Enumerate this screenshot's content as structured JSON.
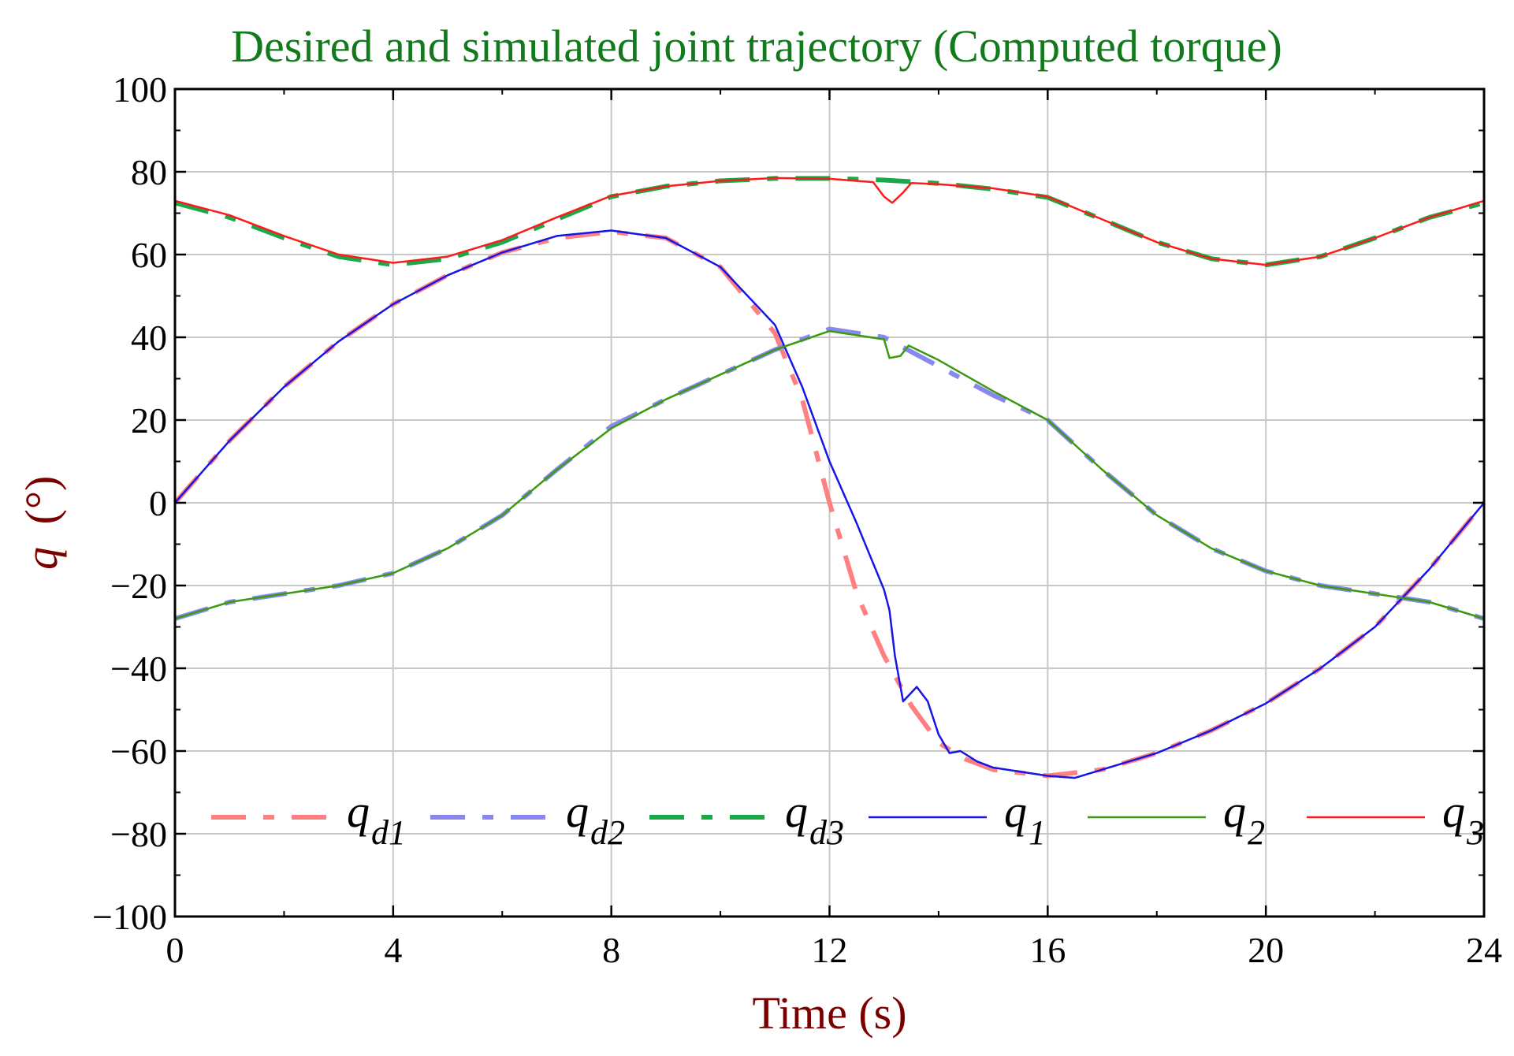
{
  "colors": {
    "title": "#117a1a",
    "axis_label": "#7a0000",
    "grid": "#c8c8c8",
    "frame": "#000000"
  },
  "chart_data": {
    "type": "line",
    "title": "Desired and simulated joint trajectory (Computed torque)",
    "xlabel": "Time (s)",
    "ylabel": "q (°)",
    "ylabel_parts": {
      "symbol": "q",
      "unit": "(°)"
    },
    "xlim": [
      0,
      24
    ],
    "ylim": [
      -100,
      100
    ],
    "xticks": [
      0,
      4,
      8,
      12,
      16,
      20,
      24
    ],
    "yticks": [
      -100,
      -80,
      -60,
      -40,
      -20,
      0,
      20,
      40,
      60,
      80,
      100
    ],
    "xtick_labels": [
      "0",
      "4",
      "8",
      "12",
      "16",
      "20",
      "24"
    ],
    "ytick_labels": [
      "−100",
      "−80",
      "−60",
      "−40",
      "−20",
      "0",
      "20",
      "40",
      "60",
      "80",
      "100"
    ],
    "grid": true,
    "legend_position": "bottom",
    "series": [
      {
        "name": "q_d1",
        "label_main": "q",
        "label_sub": "d1",
        "color": "#ff8080",
        "dash": "dashed",
        "width": 6,
        "points": [
          [
            0,
            0
          ],
          [
            1,
            15
          ],
          [
            2,
            28
          ],
          [
            3,
            39
          ],
          [
            4,
            48
          ],
          [
            5,
            55
          ],
          [
            6,
            60.5
          ],
          [
            7,
            64
          ],
          [
            8,
            65.5
          ],
          [
            9,
            64
          ],
          [
            10,
            57
          ],
          [
            11,
            41
          ],
          [
            11.5,
            25
          ],
          [
            12,
            0
          ],
          [
            12.5,
            -22
          ],
          [
            13,
            -37
          ],
          [
            13.5,
            -49
          ],
          [
            14,
            -58
          ],
          [
            14.5,
            -62
          ],
          [
            15,
            -64.5
          ],
          [
            16,
            -66
          ],
          [
            17,
            -64.5
          ],
          [
            18,
            -60.5
          ],
          [
            19,
            -55
          ],
          [
            20,
            -48.5
          ],
          [
            21,
            -40
          ],
          [
            22,
            -30
          ],
          [
            23,
            -16
          ],
          [
            24,
            0
          ]
        ]
      },
      {
        "name": "q_d2",
        "label_main": "q",
        "label_sub": "d2",
        "color": "#8888ee",
        "dash": "dashed",
        "width": 6,
        "points": [
          [
            0,
            -28
          ],
          [
            1,
            -24
          ],
          [
            2,
            -22
          ],
          [
            3,
            -20
          ],
          [
            4,
            -17
          ],
          [
            5,
            -11
          ],
          [
            6,
            -3
          ],
          [
            7,
            8
          ],
          [
            8,
            18.5
          ],
          [
            9,
            25
          ],
          [
            10,
            31
          ],
          [
            11,
            37
          ],
          [
            12,
            42
          ],
          [
            13,
            40
          ],
          [
            14,
            33
          ],
          [
            15,
            26
          ],
          [
            16,
            20
          ],
          [
            17,
            8
          ],
          [
            18,
            -3
          ],
          [
            19,
            -11
          ],
          [
            20,
            -16.5
          ],
          [
            21,
            -20
          ],
          [
            22,
            -22
          ],
          [
            23,
            -24
          ],
          [
            24,
            -28
          ]
        ]
      },
      {
        "name": "q_d3",
        "label_main": "q",
        "label_sub": "d3",
        "color": "#1aa84a",
        "dash": "dashed",
        "width": 6,
        "points": [
          [
            0,
            72.5
          ],
          [
            1,
            69
          ],
          [
            2,
            64
          ],
          [
            3,
            59.5
          ],
          [
            4,
            57.5
          ],
          [
            5,
            59
          ],
          [
            6,
            63
          ],
          [
            7,
            68.5
          ],
          [
            8,
            74
          ],
          [
            9,
            76.5
          ],
          [
            10,
            77.8
          ],
          [
            11,
            78.4
          ],
          [
            12,
            78.4
          ],
          [
            13,
            78
          ],
          [
            14,
            77.2
          ],
          [
            15,
            75.8
          ],
          [
            16,
            73.8
          ],
          [
            17,
            68.5
          ],
          [
            18,
            63
          ],
          [
            19,
            59
          ],
          [
            20,
            57.5
          ],
          [
            21,
            59.5
          ],
          [
            22,
            64
          ],
          [
            23,
            69
          ],
          [
            24,
            72.5
          ]
        ]
      },
      {
        "name": "q_1",
        "label_main": "q",
        "label_sub": "1",
        "color": "#1515e6",
        "dash": "solid",
        "width": 2.5,
        "points": [
          [
            0,
            0
          ],
          [
            1,
            15
          ],
          [
            2,
            28
          ],
          [
            3,
            39
          ],
          [
            4,
            48
          ],
          [
            5,
            55
          ],
          [
            6,
            60.5
          ],
          [
            7,
            64.5
          ],
          [
            8,
            65.8
          ],
          [
            9,
            64
          ],
          [
            10,
            57
          ],
          [
            11,
            43
          ],
          [
            11.5,
            28
          ],
          [
            12,
            10
          ],
          [
            12.5,
            -5
          ],
          [
            13,
            -21
          ],
          [
            13.1,
            -26
          ],
          [
            13.2,
            -37
          ],
          [
            13.35,
            -48
          ],
          [
            13.6,
            -44.5
          ],
          [
            13.8,
            -48
          ],
          [
            14,
            -56
          ],
          [
            14.2,
            -60.5
          ],
          [
            14.4,
            -60
          ],
          [
            14.7,
            -62.5
          ],
          [
            15,
            -64
          ],
          [
            16,
            -66
          ],
          [
            16.5,
            -66.5
          ],
          [
            17,
            -64.5
          ],
          [
            18,
            -60.5
          ],
          [
            19,
            -55
          ],
          [
            20,
            -48.5
          ],
          [
            21,
            -40
          ],
          [
            22,
            -30
          ],
          [
            23,
            -16
          ],
          [
            24,
            0
          ]
        ]
      },
      {
        "name": "q_2",
        "label_main": "q",
        "label_sub": "2",
        "color": "#3a9a10",
        "dash": "solid",
        "width": 2.5,
        "points": [
          [
            0,
            -28
          ],
          [
            1,
            -24
          ],
          [
            2,
            -22
          ],
          [
            3,
            -20
          ],
          [
            4,
            -17
          ],
          [
            5,
            -11
          ],
          [
            6,
            -3
          ],
          [
            7,
            8
          ],
          [
            8,
            18
          ],
          [
            9,
            25
          ],
          [
            10,
            31
          ],
          [
            11,
            37
          ],
          [
            12,
            41.5
          ],
          [
            13,
            39.5
          ],
          [
            13.1,
            35
          ],
          [
            13.3,
            35.5
          ],
          [
            13.45,
            38
          ],
          [
            14,
            34.5
          ],
          [
            15,
            27
          ],
          [
            16,
            20
          ],
          [
            17,
            8
          ],
          [
            18,
            -3
          ],
          [
            19,
            -11
          ],
          [
            20,
            -16.5
          ],
          [
            21,
            -20
          ],
          [
            22,
            -22
          ],
          [
            23,
            -24
          ],
          [
            24,
            -28
          ]
        ]
      },
      {
        "name": "q_3",
        "label_main": "q",
        "label_sub": "3",
        "color": "#ff1a1a",
        "dash": "solid",
        "width": 2.5,
        "points": [
          [
            0,
            73
          ],
          [
            1,
            69.5
          ],
          [
            2,
            64.5
          ],
          [
            3,
            60
          ],
          [
            4,
            58
          ],
          [
            5,
            59.5
          ],
          [
            6,
            63.5
          ],
          [
            7,
            69
          ],
          [
            8,
            74.2
          ],
          [
            9,
            76.5
          ],
          [
            10,
            77.8
          ],
          [
            11,
            78.5
          ],
          [
            12,
            78.3
          ],
          [
            12.8,
            77.5
          ],
          [
            13,
            74
          ],
          [
            13.15,
            72.5
          ],
          [
            13.35,
            75
          ],
          [
            13.5,
            77.3
          ],
          [
            14,
            77
          ],
          [
            15,
            76
          ],
          [
            16,
            74
          ],
          [
            17,
            68.5
          ],
          [
            18,
            63
          ],
          [
            19,
            59
          ],
          [
            20,
            57.5
          ],
          [
            21,
            59.5
          ],
          [
            22,
            64
          ],
          [
            23,
            69
          ],
          [
            24,
            73
          ]
        ]
      }
    ]
  }
}
